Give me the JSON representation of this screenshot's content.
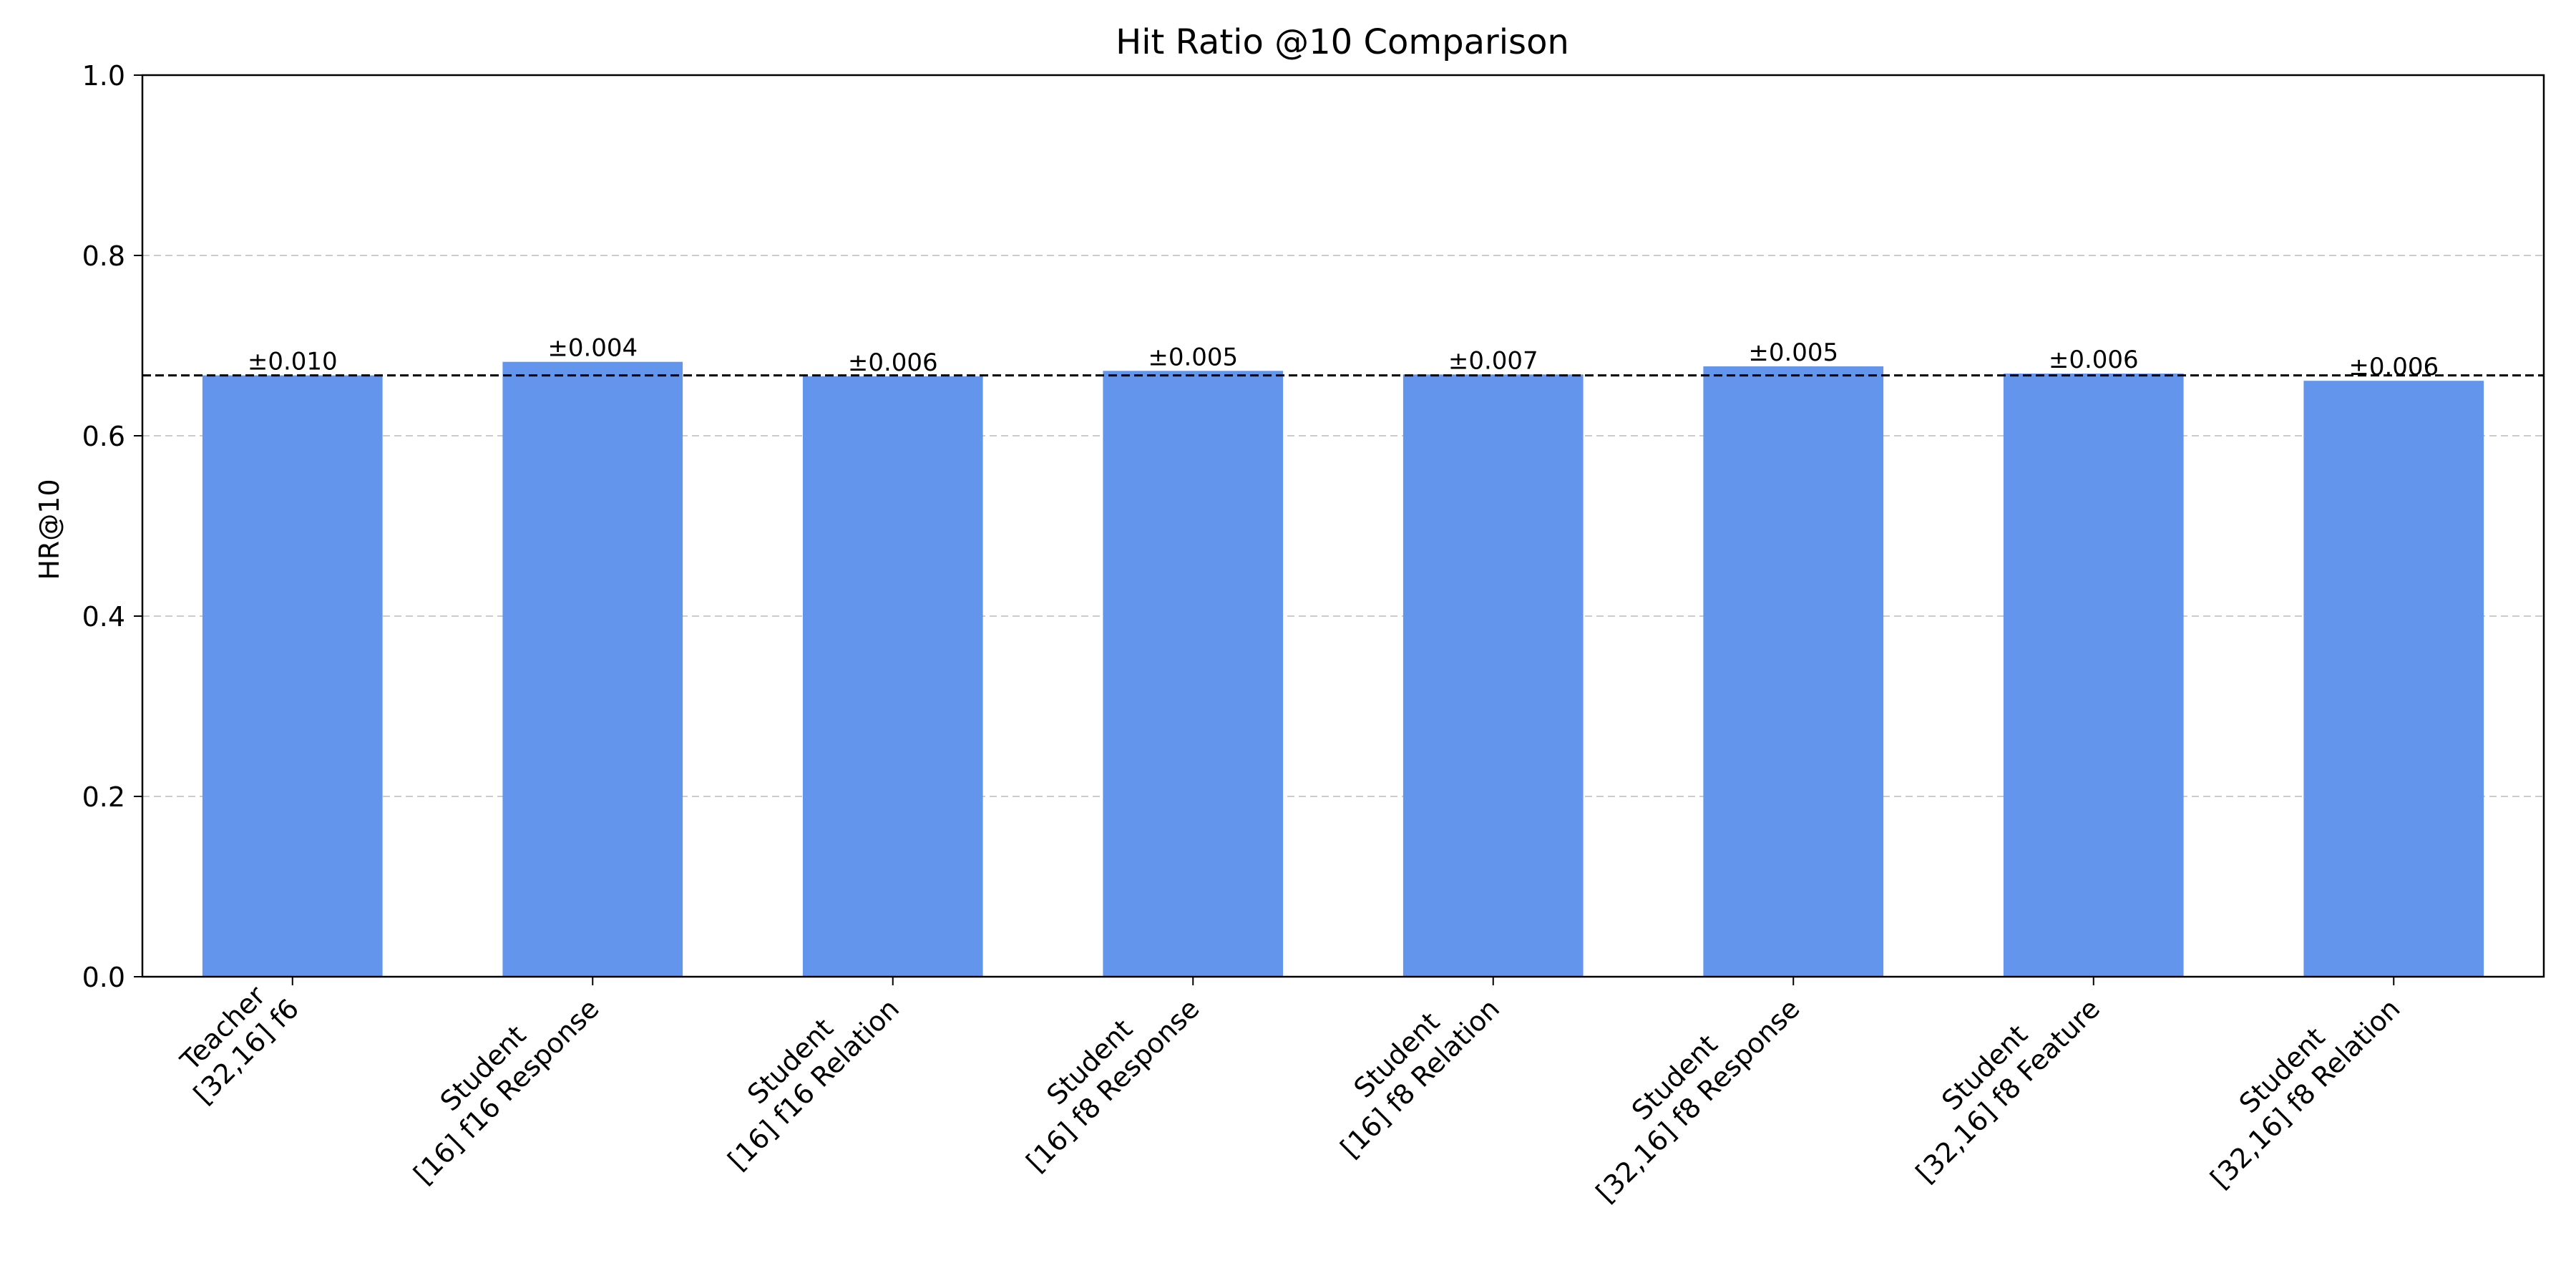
{
  "chart_data": {
    "type": "bar",
    "title": "Hit Ratio @10 Comparison",
    "xlabel": "",
    "ylabel": "HR@10",
    "ylim": [
      0,
      1.0
    ],
    "yticks": [
      "0.0",
      "0.2",
      "0.4",
      "0.6",
      "0.8",
      "1.0"
    ],
    "grid": "y-dashed",
    "categories": [
      "Teacher\n[32,16] f6",
      "Student\n[16] f16 Response",
      "Student\n[16] f16 Relation",
      "Student\n[16] f8 Response",
      "Student\n[16] f8 Relation",
      "Student\n[32,16] f8 Response",
      "Student\n[32,16] f8 Feature",
      "Student\n[32,16] f8 Relation"
    ],
    "values": [
      0.667,
      0.682,
      0.666,
      0.672,
      0.668,
      0.677,
      0.669,
      0.661
    ],
    "error_labels": [
      "±0.010",
      "±0.004",
      "±0.006",
      "±0.005",
      "±0.007",
      "±0.005",
      "±0.006",
      "±0.006"
    ],
    "reference_line": 0.667,
    "bar_color": "#6495ED"
  }
}
